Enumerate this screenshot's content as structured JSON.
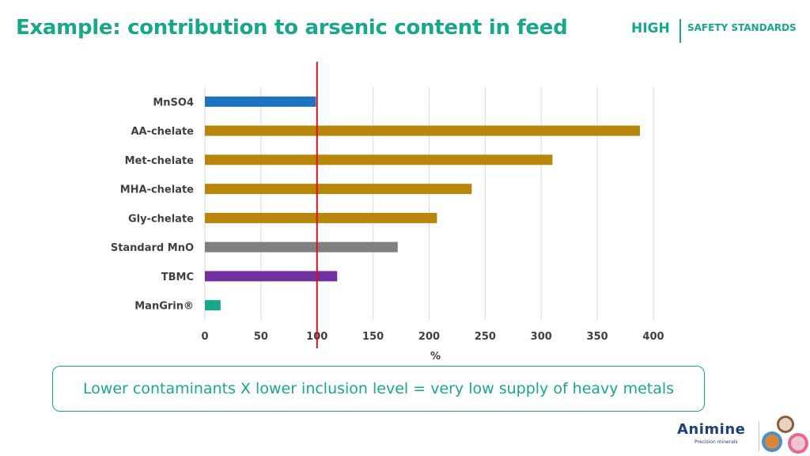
{
  "header": {
    "title": "Example: contribution to arsenic content in feed",
    "brand_high": "HIGH",
    "brand_sub": "SAFETY STANDARDS"
  },
  "callout": {
    "text": "Lower contaminants X lower inclusion level = very low supply of heavy metals"
  },
  "footer": {
    "logo_word": "Animine",
    "logo_tagline": "Precision minerals"
  },
  "colors": {
    "accent": "#17a88a",
    "reference_line": "#d0141a"
  },
  "chart_data": {
    "type": "bar",
    "orientation": "horizontal",
    "categories": [
      "MnSO4",
      "AA-chelate",
      "Met-chelate",
      "MHA-chelate",
      "Gly-chelate",
      "Standard MnO",
      "TBMC",
      "ManGrin®"
    ],
    "values": [
      99,
      388,
      310,
      238,
      207,
      172,
      118,
      14
    ],
    "bar_colors": [
      "#1e73be",
      "#b8860b",
      "#b8860b",
      "#b8860b",
      "#b8860b",
      "#808080",
      "#7030a0",
      "#17a88a"
    ],
    "xlabel": "%",
    "xlim": [
      0,
      400
    ],
    "xticks": [
      "0",
      "50",
      "100",
      "150",
      "200",
      "250",
      "300",
      "350",
      "400"
    ],
    "reference_line": 100,
    "grid": "vertical"
  }
}
